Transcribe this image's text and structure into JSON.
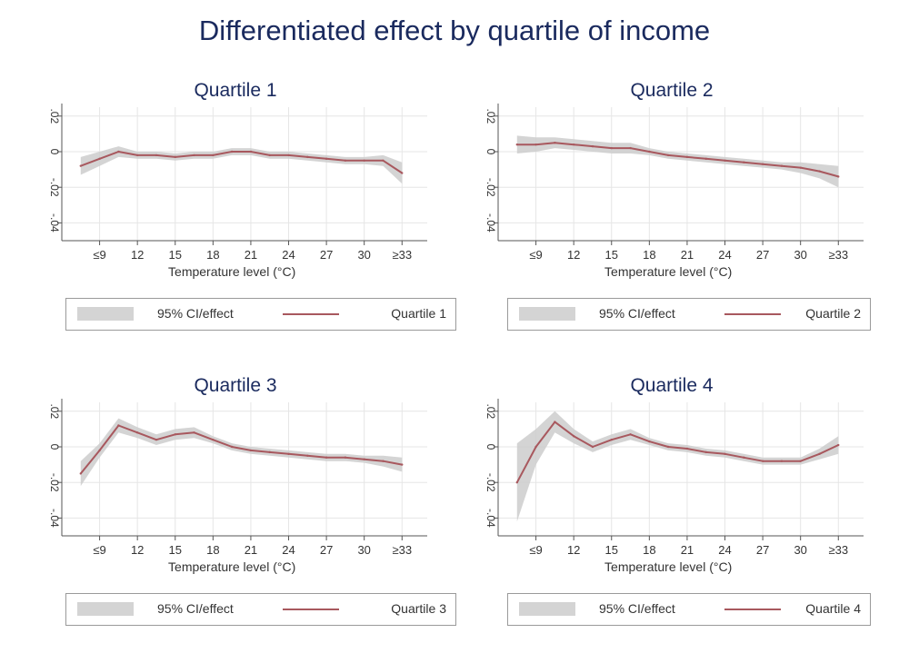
{
  "figure": {
    "title": "Differentiated effect by quartile of income",
    "legend_ci_label": "95% CI/effect"
  },
  "chart_data": [
    {
      "type": "line",
      "title": "Quartile 1",
      "xlabel": "Temperature level (°C)",
      "ylabel": "",
      "x_tick_labels": [
        "≤9",
        "12",
        "15",
        "18",
        "21",
        "24",
        "27",
        "30",
        "≥33"
      ],
      "y_tick_labels": [
        ".02",
        "0",
        "-.02",
        "-.04"
      ],
      "y_ticks": [
        0.02,
        0,
        -0.02,
        -0.04
      ],
      "ylim": [
        -0.05,
        0.025
      ],
      "grid": true,
      "legend_placement": "bottom",
      "series": [
        {
          "name": "Quartile 1",
          "x": [
            7.5,
            9,
            10.5,
            12,
            13.5,
            15,
            16.5,
            18,
            19.5,
            21,
            22.5,
            24,
            25.5,
            27,
            28.5,
            30,
            31.5,
            33
          ],
          "values": [
            -0.008,
            -0.004,
            0.0,
            -0.002,
            -0.002,
            -0.003,
            -0.002,
            -0.002,
            0.0,
            0.0,
            -0.002,
            -0.002,
            -0.003,
            -0.004,
            -0.005,
            -0.005,
            -0.005,
            -0.012
          ],
          "ci_lower": [
            -0.013,
            -0.008,
            -0.003,
            -0.004,
            -0.004,
            -0.005,
            -0.004,
            -0.004,
            -0.002,
            -0.002,
            -0.004,
            -0.004,
            -0.005,
            -0.006,
            -0.007,
            -0.007,
            -0.008,
            -0.018
          ],
          "ci_upper": [
            -0.003,
            0.0,
            0.003,
            0.0,
            0.0,
            -0.001,
            0.0,
            0.0,
            0.002,
            0.002,
            0.0,
            0.0,
            -0.001,
            -0.002,
            -0.003,
            -0.003,
            -0.002,
            -0.006
          ]
        }
      ],
      "legend_series_label": "Quartile 1"
    },
    {
      "type": "line",
      "title": "Quartile 2",
      "xlabel": "Temperature level (°C)",
      "ylabel": "",
      "x_tick_labels": [
        "≤9",
        "12",
        "15",
        "18",
        "21",
        "24",
        "27",
        "30",
        "≥33"
      ],
      "y_tick_labels": [
        ".02",
        "0",
        "-.02",
        "-.04"
      ],
      "y_ticks": [
        0.02,
        0,
        -0.02,
        -0.04
      ],
      "ylim": [
        -0.05,
        0.025
      ],
      "grid": true,
      "legend_placement": "bottom",
      "series": [
        {
          "name": "Quartile 2",
          "x": [
            7.5,
            9,
            10.5,
            12,
            13.5,
            15,
            16.5,
            18,
            19.5,
            21,
            22.5,
            24,
            25.5,
            27,
            28.5,
            30,
            31.5,
            33
          ],
          "values": [
            0.004,
            0.004,
            0.005,
            0.004,
            0.003,
            0.002,
            0.002,
            0.0,
            -0.002,
            -0.003,
            -0.004,
            -0.005,
            -0.006,
            -0.007,
            -0.008,
            -0.009,
            -0.011,
            -0.014
          ],
          "ci_lower": [
            -0.001,
            0.0,
            0.002,
            0.001,
            0.0,
            -0.001,
            -0.001,
            -0.002,
            -0.004,
            -0.005,
            -0.006,
            -0.007,
            -0.008,
            -0.009,
            -0.01,
            -0.012,
            -0.015,
            -0.02
          ],
          "ci_upper": [
            0.009,
            0.008,
            0.008,
            0.007,
            0.006,
            0.005,
            0.005,
            0.002,
            0.0,
            -0.001,
            -0.002,
            -0.003,
            -0.004,
            -0.005,
            -0.006,
            -0.006,
            -0.007,
            -0.008
          ]
        }
      ],
      "legend_series_label": "Quartile 2"
    },
    {
      "type": "line",
      "title": "Quartile 3",
      "xlabel": "Temperature level (°C)",
      "ylabel": "",
      "x_tick_labels": [
        "≤9",
        "12",
        "15",
        "18",
        "21",
        "24",
        "27",
        "30",
        "≥33"
      ],
      "y_tick_labels": [
        ".02",
        "0",
        "-.02",
        "-.04"
      ],
      "y_ticks": [
        0.02,
        0,
        -0.02,
        -0.04
      ],
      "ylim": [
        -0.05,
        0.025
      ],
      "grid": true,
      "legend_placement": "bottom",
      "series": [
        {
          "name": "Quartile 3",
          "x": [
            7.5,
            9,
            10.5,
            12,
            13.5,
            15,
            16.5,
            18,
            19.5,
            21,
            22.5,
            24,
            25.5,
            27,
            28.5,
            30,
            31.5,
            33
          ],
          "values": [
            -0.015,
            -0.002,
            0.012,
            0.008,
            0.004,
            0.007,
            0.008,
            0.004,
            0.0,
            -0.002,
            -0.003,
            -0.004,
            -0.005,
            -0.006,
            -0.006,
            -0.007,
            -0.008,
            -0.01
          ],
          "ci_lower": [
            -0.022,
            -0.006,
            0.008,
            0.005,
            0.001,
            0.004,
            0.005,
            0.002,
            -0.002,
            -0.004,
            -0.005,
            -0.006,
            -0.007,
            -0.008,
            -0.008,
            -0.009,
            -0.011,
            -0.014
          ],
          "ci_upper": [
            -0.008,
            0.002,
            0.016,
            0.011,
            0.007,
            0.01,
            0.011,
            0.006,
            0.002,
            0.0,
            -0.001,
            -0.002,
            -0.003,
            -0.004,
            -0.004,
            -0.005,
            -0.005,
            -0.006
          ]
        }
      ],
      "legend_series_label": "Quartile 3"
    },
    {
      "type": "line",
      "title": "Quartile 4",
      "xlabel": "Temperature level (°C)",
      "ylabel": "",
      "x_tick_labels": [
        "≤9",
        "12",
        "15",
        "18",
        "21",
        "24",
        "27",
        "30",
        "≥33"
      ],
      "y_tick_labels": [
        ".02",
        "0",
        "-.02",
        "-.04"
      ],
      "y_ticks": [
        0.02,
        0,
        -0.02,
        -0.04
      ],
      "ylim": [
        -0.05,
        0.025
      ],
      "grid": true,
      "legend_placement": "bottom",
      "series": [
        {
          "name": "Quartile 4",
          "x": [
            7.5,
            9,
            10.5,
            12,
            13.5,
            15,
            16.5,
            18,
            19.5,
            21,
            22.5,
            24,
            25.5,
            27,
            28.5,
            30,
            31.5,
            33
          ],
          "values": [
            -0.02,
            0.0,
            0.014,
            0.006,
            0.0,
            0.004,
            0.007,
            0.003,
            0.0,
            -0.001,
            -0.003,
            -0.004,
            -0.006,
            -0.008,
            -0.008,
            -0.008,
            -0.004,
            0.001
          ],
          "ci_lower": [
            -0.042,
            -0.01,
            0.008,
            0.002,
            -0.003,
            0.001,
            0.004,
            0.001,
            -0.002,
            -0.003,
            -0.005,
            -0.006,
            -0.008,
            -0.01,
            -0.01,
            -0.01,
            -0.007,
            -0.004
          ],
          "ci_upper": [
            0.002,
            0.01,
            0.02,
            0.01,
            0.003,
            0.007,
            0.01,
            0.005,
            0.002,
            0.001,
            -0.001,
            -0.002,
            -0.004,
            -0.006,
            -0.006,
            -0.006,
            -0.001,
            0.006
          ]
        }
      ],
      "legend_series_label": "Quartile 4"
    }
  ],
  "colors": {
    "line": "#a8585e",
    "ci_band": "#cdcdcd",
    "title": "#1a2a5e",
    "grid": "#e6e6e6"
  }
}
